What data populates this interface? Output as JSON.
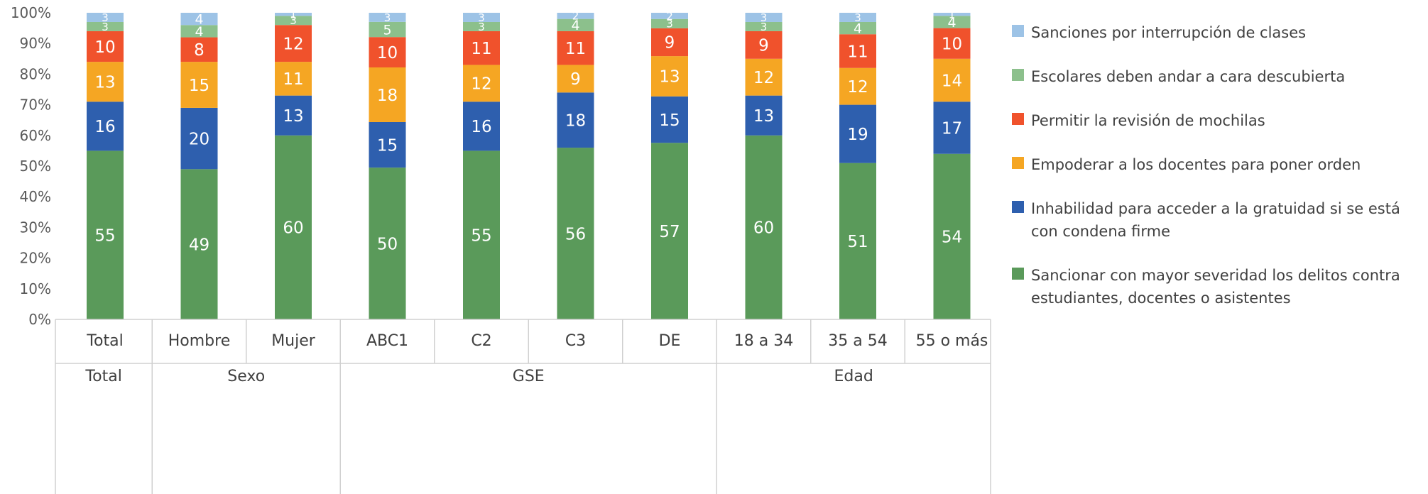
{
  "chart_data": {
    "type": "bar",
    "stacked": true,
    "percent_stacked": true,
    "ylim": [
      0,
      100
    ],
    "y_ticks": [
      "0%",
      "10%",
      "20%",
      "30%",
      "40%",
      "50%",
      "60%",
      "70%",
      "80%",
      "90%",
      "100%"
    ],
    "categories": [
      "Total",
      "Hombre",
      "Mujer",
      "ABC1",
      "C2",
      "C3",
      "DE",
      "18 a 34",
      "35 a 54",
      "55 o más"
    ],
    "groups": [
      {
        "label": "Total",
        "span": 1
      },
      {
        "label": "Sexo",
        "span": 2
      },
      {
        "label": "GSE",
        "span": 4
      },
      {
        "label": "Edad",
        "span": 3
      }
    ],
    "series": [
      {
        "name": "Sancionar con mayor severidad los delitos contra estudiantes, docentes o asistentes",
        "color": "#5A9A5A",
        "values": [
          55,
          49,
          60,
          50,
          55,
          56,
          57,
          60,
          51,
          54
        ]
      },
      {
        "name": "Inhabilidad para acceder a la gratuidad si se está con condena firme",
        "color": "#2E5FAE",
        "values": [
          16,
          20,
          13,
          15,
          16,
          18,
          15,
          13,
          19,
          17
        ]
      },
      {
        "name": "Empoderar a los docentes para poner orden",
        "color": "#F5A623",
        "values": [
          13,
          15,
          11,
          18,
          12,
          9,
          13,
          12,
          12,
          14
        ]
      },
      {
        "name": "Permitir la revisión de mochilas",
        "color": "#F0522C",
        "values": [
          10,
          8,
          12,
          10,
          11,
          11,
          9,
          9,
          11,
          10
        ]
      },
      {
        "name": "Escolares deben andar a cara descubierta",
        "color": "#8CC08C",
        "values": [
          3,
          4,
          3,
          5,
          3,
          4,
          3,
          3,
          4,
          4
        ]
      },
      {
        "name": "Sanciones por interrupción de clases",
        "color": "#9DC3E6",
        "values": [
          3,
          4,
          1,
          3,
          3,
          2,
          2,
          3,
          3,
          1
        ]
      }
    ],
    "legend_position": "right",
    "grid": false
  },
  "legend_order": [
    5,
    4,
    3,
    2,
    1,
    0
  ]
}
